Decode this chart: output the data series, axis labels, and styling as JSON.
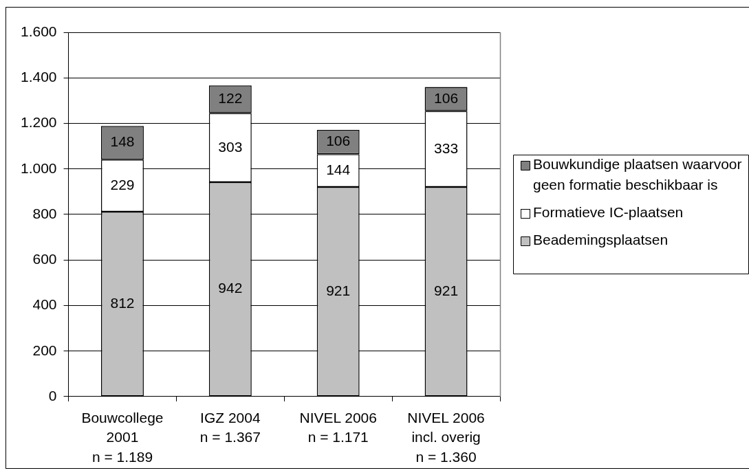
{
  "chart_data": {
    "type": "bar",
    "stacked": true,
    "categories": [
      "Bouwcollege\n2001\nn = 1.189",
      "IGZ 2004\nn = 1.367",
      "NIVEL 2006\nn = 1.171",
      "NIVEL 2006\nincl. overig\nn = 1.360"
    ],
    "series": [
      {
        "name": "Beademingsplaatsen",
        "color": "#c0c0c0",
        "values": [
          812,
          942,
          921,
          921
        ]
      },
      {
        "name": "Formatieve IC-plaatsen",
        "color": "#ffffff",
        "values": [
          229,
          303,
          144,
          333
        ]
      },
      {
        "name": "Bouwkundige plaatsen waarvoor geen formatie beschikbaar is",
        "color": "#808080",
        "values": [
          148,
          122,
          106,
          106
        ]
      }
    ],
    "ylim": [
      0,
      1600
    ],
    "yticks": [
      0,
      200,
      400,
      600,
      800,
      {
        "value": 1000,
        "label": "1.000"
      },
      {
        "value": 1200,
        "label": "1.200"
      },
      {
        "value": 1400,
        "label": "1.400"
      },
      {
        "value": 1600,
        "label": "1.600"
      }
    ],
    "grid": "y",
    "legend": "right",
    "data_labels": true
  }
}
